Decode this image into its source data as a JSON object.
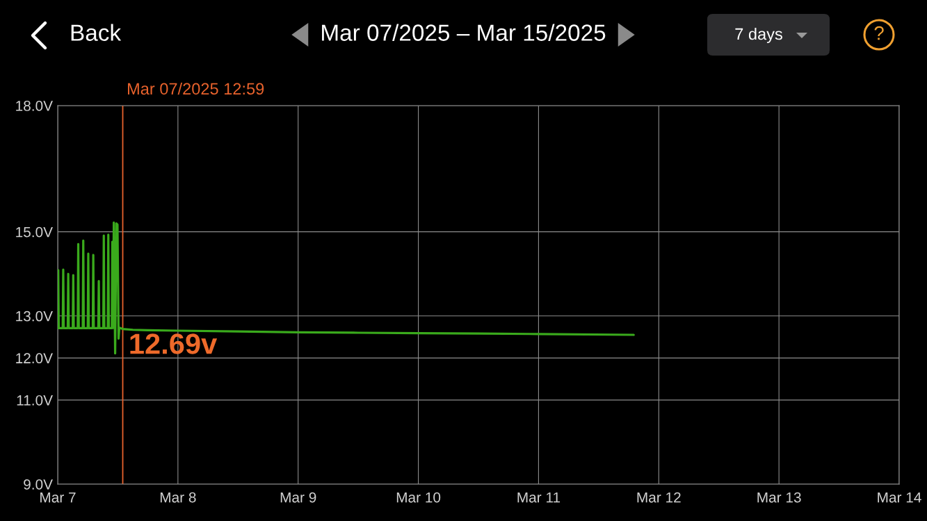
{
  "chart_data": {
    "type": "line",
    "title": "Mar 07/2025 – Mar 15/2025",
    "x": [
      "2025-03-07T00:00",
      "2025-03-07T00:06",
      "2025-03-07T00:12",
      "2025-03-07T01:00",
      "2025-03-07T01:06",
      "2025-03-07T01:12",
      "2025-03-07T02:00",
      "2025-03-07T02:06",
      "2025-03-07T02:12",
      "2025-03-07T03:00",
      "2025-03-07T03:06",
      "2025-03-07T03:12",
      "2025-03-07T04:00",
      "2025-03-07T04:06",
      "2025-03-07T04:12",
      "2025-03-07T05:00",
      "2025-03-07T05:06",
      "2025-03-07T05:12",
      "2025-03-07T06:00",
      "2025-03-07T06:06",
      "2025-03-07T06:12",
      "2025-03-07T07:00",
      "2025-03-07T07:06",
      "2025-03-07T07:12",
      "2025-03-07T08:06",
      "2025-03-07T08:12",
      "2025-03-07T08:18",
      "2025-03-07T09:06",
      "2025-03-07T09:12",
      "2025-03-07T09:18",
      "2025-03-07T10:00",
      "2025-03-07T10:06",
      "2025-03-07T10:12",
      "2025-03-07T10:48",
      "2025-03-07T10:54",
      "2025-03-07T11:00",
      "2025-03-07T11:12",
      "2025-03-07T11:28",
      "2025-03-07T11:42",
      "2025-03-07T11:56",
      "2025-03-07T12:09",
      "2025-03-07T12:18",
      "2025-03-07T12:59",
      "2025-03-07T15:00",
      "2025-03-07T18:00",
      "2025-03-08T00:00",
      "2025-03-08T12:00",
      "2025-03-09T00:00",
      "2025-03-09T12:00",
      "2025-03-10T00:00",
      "2025-03-10T12:00",
      "2025-03-11T00:00",
      "2025-03-11T19:00"
    ],
    "series": [
      {
        "color": "#3aaa1c",
        "values": [
          12.71,
          14.09,
          12.71,
          12.71,
          14.1,
          12.71,
          12.71,
          14.0,
          12.71,
          12.71,
          13.97,
          12.71,
          12.71,
          14.71,
          12.71,
          12.71,
          14.79,
          12.71,
          12.71,
          14.48,
          12.71,
          12.71,
          14.45,
          12.71,
          12.71,
          13.83,
          12.71,
          12.71,
          14.91,
          12.71,
          12.71,
          14.93,
          12.71,
          12.71,
          14.76,
          12.71,
          15.22,
          12.11,
          15.2,
          15.17,
          12.46,
          12.72,
          12.69,
          12.67,
          12.66,
          12.65,
          12.63,
          12.61,
          12.6,
          12.59,
          12.58,
          12.57,
          12.55
        ]
      }
    ],
    "xlim": [
      "2025-03-07",
      "2025-03-14"
    ],
    "xticks": [
      {
        "value": "2025-03-07",
        "label": "Mar 7"
      },
      {
        "value": "2025-03-08",
        "label": "Mar 8"
      },
      {
        "value": "2025-03-09",
        "label": "Mar 9"
      },
      {
        "value": "2025-03-10",
        "label": "Mar 10"
      },
      {
        "value": "2025-03-11",
        "label": "Mar 11"
      },
      {
        "value": "2025-03-12",
        "label": "Mar 12"
      },
      {
        "value": "2025-03-13",
        "label": "Mar 13"
      },
      {
        "value": "2025-03-14",
        "label": "Mar 14"
      }
    ],
    "ylim": [
      9,
      18
    ],
    "yticks": [
      {
        "value": 9,
        "label": "9.0V"
      },
      {
        "value": 11,
        "label": "11.0V"
      },
      {
        "value": 12,
        "label": "12.0V"
      },
      {
        "value": 13,
        "label": "13.0V"
      },
      {
        "value": 15,
        "label": "15.0V"
      },
      {
        "value": 18,
        "label": "18.0V"
      }
    ],
    "grid": true,
    "line_style": "solid",
    "ref_lines": [
      {
        "axis": "x",
        "value": "2025-03-07T12:59",
        "label": "Mar 07/2025 12:59",
        "color": "#e8622c"
      }
    ],
    "annotations": [
      "Back",
      "7 days",
      "?",
      {
        "text": "12.69v",
        "x": "2025-03-07T12:59",
        "y": 12.69
      }
    ]
  }
}
